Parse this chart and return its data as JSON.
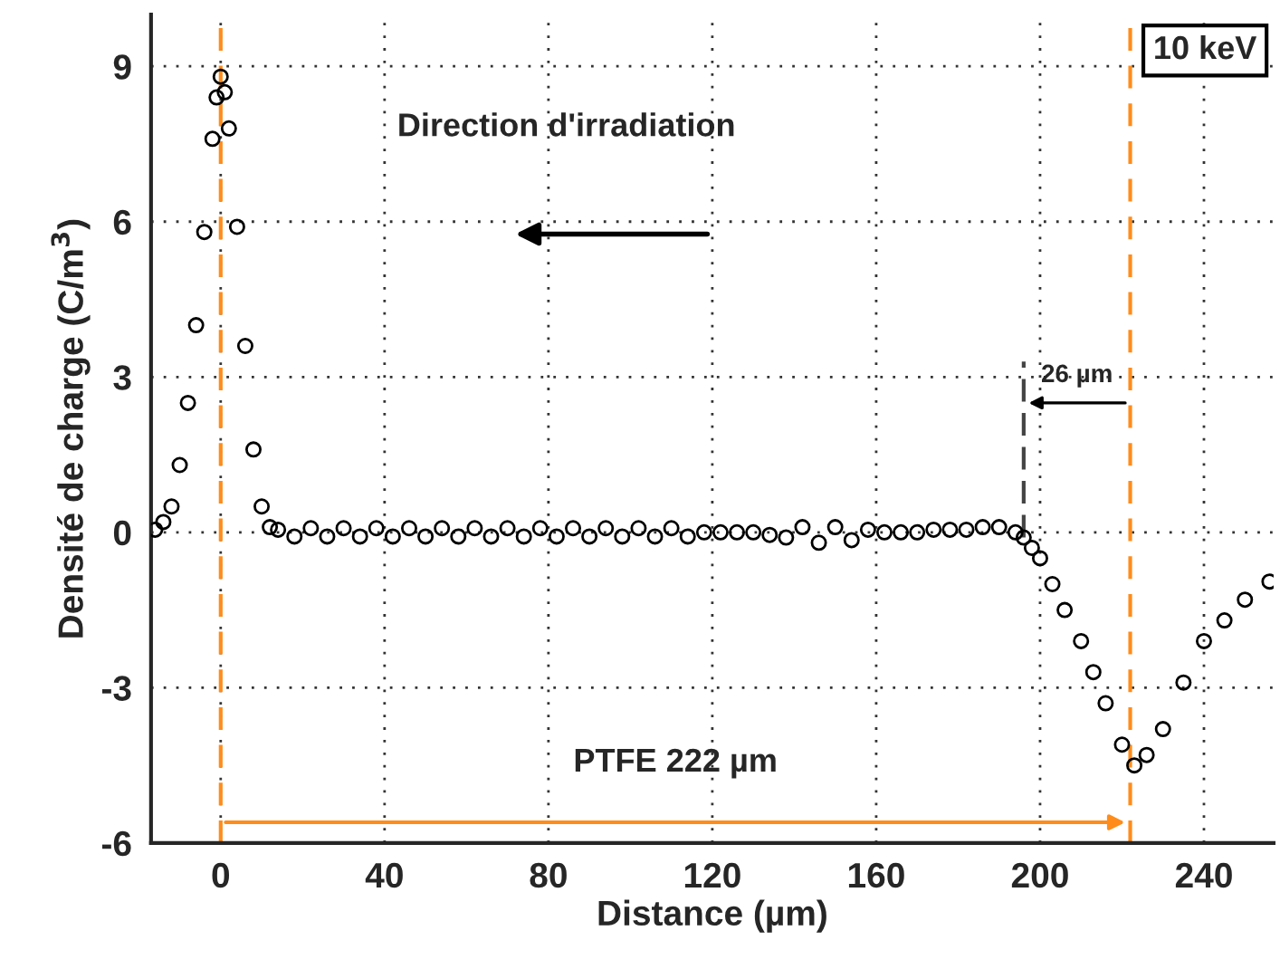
{
  "chart_data": {
    "type": "scatter",
    "xlabel": "Distance (µm)",
    "ylabel": "Densité de charge (C/m$^{3}$)",
    "annotations": [
      "10 keV",
      "Direction d'irradiation",
      {
        "text": "26 µm",
        "x": 196,
        "y": -0.1
      },
      "PTFE 222 µm"
    ],
    "x": [
      -16,
      -14,
      -12,
      -10,
      -8,
      -6,
      -4,
      -2,
      -1,
      0,
      1,
      2,
      4,
      6,
      8,
      10,
      12,
      14,
      18,
      22,
      26,
      30,
      34,
      38,
      42,
      46,
      50,
      54,
      58,
      62,
      66,
      70,
      74,
      78,
      82,
      86,
      90,
      94,
      98,
      102,
      106,
      110,
      114,
      118,
      122,
      126,
      130,
      134,
      138,
      142,
      146,
      150,
      154,
      158,
      162,
      166,
      170,
      174,
      178,
      182,
      186,
      190,
      194,
      196,
      198,
      200,
      203,
      206,
      210,
      213,
      216,
      220,
      223,
      226,
      230,
      235,
      240,
      245,
      250,
      256
    ],
    "series": [
      {
        "color": "#000000",
        "values": [
          0.05,
          0.2,
          0.5,
          1.3,
          2.5,
          4.0,
          5.8,
          7.6,
          8.4,
          8.8,
          8.5,
          7.8,
          5.9,
          3.6,
          1.6,
          0.5,
          0.1,
          0.05,
          -0.08,
          0.08,
          -0.08,
          0.08,
          -0.08,
          0.08,
          -0.08,
          0.08,
          -0.08,
          0.08,
          -0.08,
          0.08,
          -0.08,
          0.08,
          -0.08,
          0.08,
          -0.08,
          0.08,
          -0.08,
          0.08,
          -0.08,
          0.08,
          -0.08,
          0.08,
          -0.08,
          0.0,
          0.0,
          0.0,
          0.0,
          -0.05,
          -0.1,
          0.1,
          -0.2,
          0.1,
          -0.15,
          0.05,
          0.0,
          0.0,
          0.0,
          0.05,
          0.05,
          0.05,
          0.1,
          0.1,
          0.0,
          -0.1,
          -0.3,
          -0.5,
          -1.0,
          -1.5,
          -2.1,
          -2.7,
          -3.3,
          -4.1,
          -4.5,
          -4.3,
          -3.8,
          -2.9,
          -2.1,
          -1.7,
          -1.3,
          -0.95
        ]
      }
    ],
    "marker": "circle",
    "xlim": [
      -17,
      257
    ],
    "ylim": [
      -6,
      10
    ],
    "xticks": [
      0,
      40,
      80,
      120,
      160,
      200,
      240
    ],
    "yticks": [
      -6,
      -3,
      0,
      3,
      6,
      9
    ],
    "grid": true,
    "ref_lines": [
      {
        "axis": "x",
        "value": 0,
        "color": "#ff8c1a",
        "line_style": "dashed"
      },
      {
        "axis": "x",
        "value": 222,
        "color": "#ff8c1a",
        "line_style": "dashed"
      }
    ]
  }
}
